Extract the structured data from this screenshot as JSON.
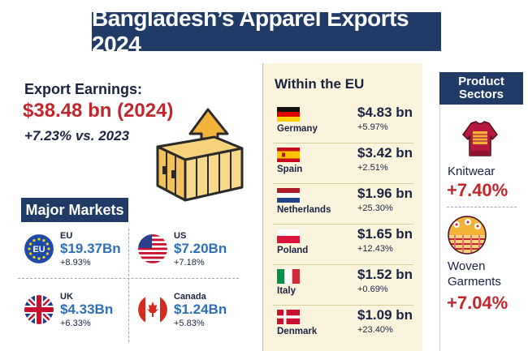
{
  "title": "Bangladesh’s Apparel  Exports 2024",
  "earnings": {
    "label": "Export Earnings:",
    "value": "$38.48 bn (2024)",
    "change": "+7.23% vs. 2023"
  },
  "major_markets": {
    "title": "Major Markets",
    "items": [
      {
        "name": "EU",
        "value": "$19.37Bn",
        "change": "+8.93%",
        "flag_label": "EU"
      },
      {
        "name": "US",
        "value": "$7.20Bn",
        "change": "+7.18%"
      },
      {
        "name": "UK",
        "value": "$4.33Bn",
        "change": "+6.33%"
      },
      {
        "name": "Canada",
        "value": "$1.24Bn",
        "change": "+5.83%"
      }
    ]
  },
  "within_eu": {
    "title": "Within the EU",
    "rows": [
      {
        "country": "Germany",
        "value": "$4.83 bn",
        "change": "+5.97%"
      },
      {
        "country": "Spain",
        "value": "$3.42 bn",
        "change": "+2.51%"
      },
      {
        "country": "Netherlands",
        "value": "$1.96 bn",
        "change": "+25.30%"
      },
      {
        "country": "Poland",
        "value": "$1.65 bn",
        "change": "+12.43%"
      },
      {
        "country": "Italy",
        "value": "$1.52 bn",
        "change": "+0.69%"
      },
      {
        "country": "Denmark",
        "value": "$1.09 bn",
        "change": "+23.40%"
      }
    ]
  },
  "product_sectors": {
    "title_line1": "Product",
    "title_line2": "Sectors",
    "items": [
      {
        "name": "Knitwear",
        "change": "+7.40%"
      },
      {
        "name_line1": "Woven",
        "name_line2": "Garments",
        "change": "+7.04%"
      }
    ]
  },
  "colors": {
    "navy": "#1f3b66",
    "red": "#c0272d",
    "blue_value": "#2c6fb7",
    "panel_bg": "#fbf4dd"
  }
}
